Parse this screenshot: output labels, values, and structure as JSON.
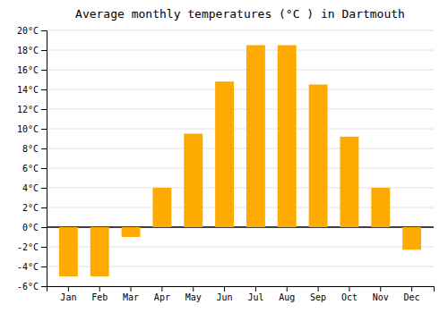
{
  "chart_data": {
    "type": "bar",
    "title": "Average monthly temperatures (°C ) in Dartmouth",
    "categories": [
      "Jan",
      "Feb",
      "Mar",
      "Apr",
      "May",
      "Jun",
      "Jul",
      "Aug",
      "Sep",
      "Oct",
      "Nov",
      "Dec"
    ],
    "values": [
      -5.0,
      -5.0,
      -1.0,
      4.0,
      9.5,
      14.8,
      18.5,
      18.5,
      14.5,
      9.2,
      4.0,
      -2.3
    ],
    "color": "#FFAA00",
    "ylim": [
      -6,
      20
    ],
    "yticks": [
      {
        "value": -6,
        "label": "-6°C"
      },
      {
        "value": -4,
        "label": "-4°C"
      },
      {
        "value": -2,
        "label": "-2°C"
      },
      {
        "value": 0,
        "label": "0°C"
      },
      {
        "value": 2,
        "label": "2°C"
      },
      {
        "value": 4,
        "label": "4°C"
      },
      {
        "value": 6,
        "label": "6°C"
      },
      {
        "value": 8,
        "label": "8°C"
      },
      {
        "value": 10,
        "label": "10°C"
      },
      {
        "value": 12,
        "label": "12°C"
      },
      {
        "value": 14,
        "label": "14°C"
      },
      {
        "value": 16,
        "label": "16°C"
      },
      {
        "value": 18,
        "label": "18°C"
      },
      {
        "value": 20,
        "label": "20°C"
      }
    ],
    "grid": true
  }
}
